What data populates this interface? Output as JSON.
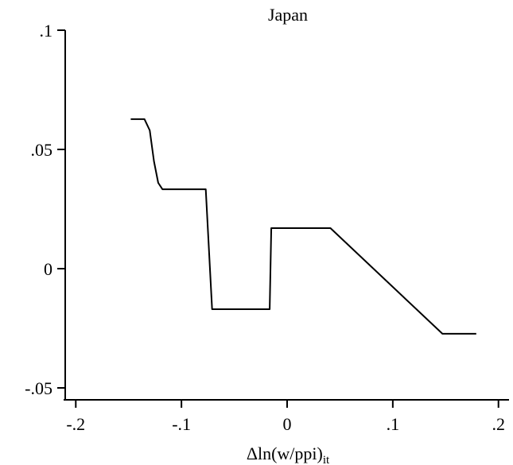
{
  "chart_data": {
    "type": "line",
    "title": "Japan",
    "x_label": {
      "main": "Δln(w/ppi)",
      "subscript": "it"
    },
    "series": [
      {
        "color": "#000000",
        "x": [
          -0.148,
          -0.135,
          -0.13,
          -0.126,
          -0.122,
          -0.118,
          -0.077,
          -0.071,
          -0.0165,
          -0.015,
          0.041,
          0.147,
          0.179
        ],
        "values": [
          0.0627,
          0.0627,
          0.058,
          0.045,
          0.036,
          0.0333,
          0.0333,
          -0.017,
          -0.017,
          0.017,
          0.017,
          -0.0273,
          -0.0273
        ]
      }
    ],
    "xlim": [
      -0.21,
      0.21
    ],
    "xticks": [
      {
        "value": -0.2,
        "label": "-.2"
      },
      {
        "value": -0.1,
        "label": "-.1"
      },
      0,
      {
        "value": 0.1,
        "label": ".1"
      },
      {
        "value": 0.2,
        "label": ".2"
      }
    ],
    "ylim": [
      -0.055,
      0.1
    ],
    "yticks": [
      {
        "value": -0.05,
        "label": "-.05"
      },
      0,
      {
        "value": 0.05,
        "label": ".05"
      },
      {
        "value": 0.1,
        "label": ".1"
      }
    ],
    "grid": false
  }
}
